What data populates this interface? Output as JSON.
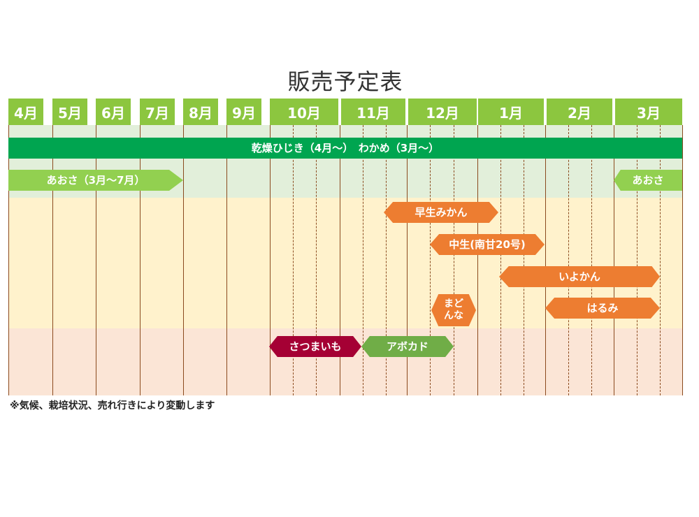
{
  "title": "販売予定表",
  "months": [
    "4月",
    "5月",
    "6月",
    "7月",
    "8月",
    "9月",
    "10月",
    "11月",
    "12月",
    "1月",
    "2月",
    "3月"
  ],
  "bars": {
    "hijiki": "乾燥ひじき（4月～）　わかめ（3月～）",
    "aosa_left": "あおさ（3月～7月）",
    "aosa_right": "あおさ",
    "wase": "早生みかん",
    "nakate": "中生(南甘20号)",
    "iyokan": "いよかん",
    "madonna": "まど\nんな",
    "harumi": "はるみ",
    "satsumaimo": "さつまいも",
    "avocado": "アボカド"
  },
  "colors": {
    "month_header": "#8cc63f",
    "seaweed_band": "#e2efda",
    "citrus_band": "#fff2cc",
    "other_band": "#fbe5d6",
    "seaweed_bar": "#00a550",
    "aosa_bar": "#92d050",
    "citrus_bar": "#ed7d31",
    "satsumaimo_bar": "#a50034",
    "avocado_bar": "#70ad47",
    "grid_line": "#8b4a1e"
  },
  "note": "※気候、栽培状況、売れ行きにより変動します"
}
